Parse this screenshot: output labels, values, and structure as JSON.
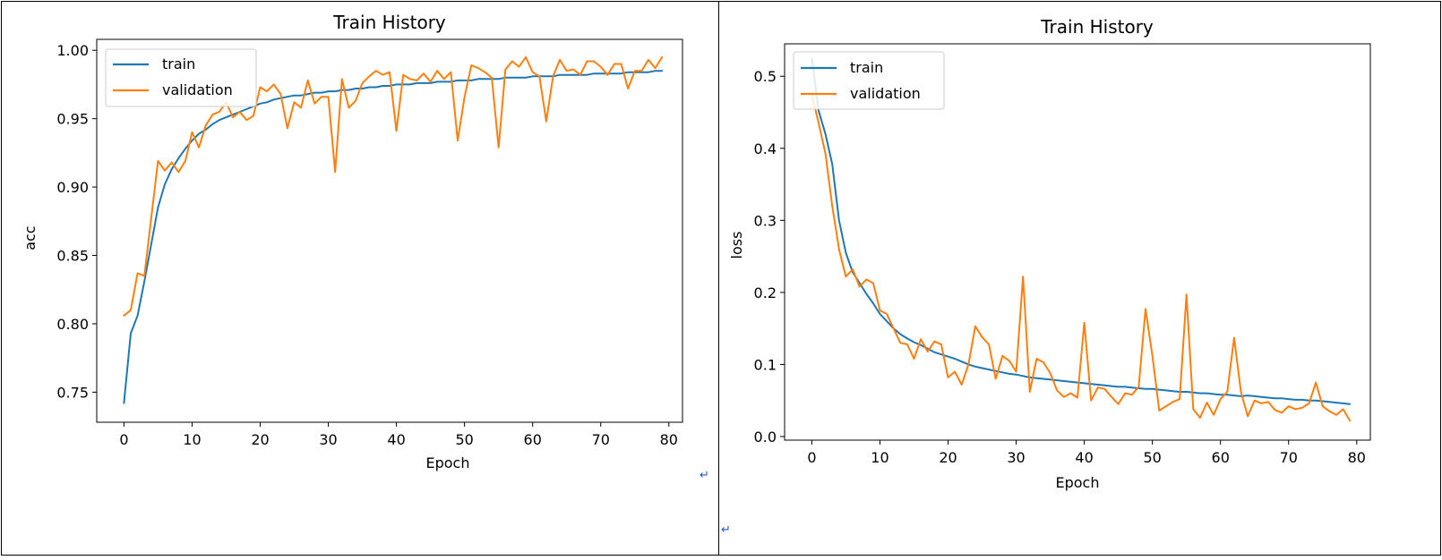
{
  "colors": {
    "train": "#1f77b4",
    "validation": "#ff7f0e",
    "border": "#000000",
    "axis": "#000000",
    "return_mark": "#2255cc"
  },
  "marks": {
    "return_symbol": "↵"
  },
  "chart_data": [
    {
      "type": "line",
      "title": "Train History",
      "xlabel": "Epoch",
      "ylabel": "acc",
      "xlim": [
        -4,
        82
      ],
      "ylim": [
        0.728,
        1.008
      ],
      "xticks": [
        0,
        10,
        20,
        30,
        40,
        50,
        60,
        70,
        80
      ],
      "yticks": [
        0.75,
        0.8,
        0.85,
        0.9,
        0.95,
        1.0
      ],
      "ytick_labels": [
        "0.75",
        "0.80",
        "0.85",
        "0.90",
        "0.95",
        "1.00"
      ],
      "legend": "top-left",
      "grid": false,
      "x": [
        0,
        1,
        2,
        3,
        4,
        5,
        6,
        7,
        8,
        9,
        10,
        11,
        12,
        13,
        14,
        15,
        16,
        17,
        18,
        19,
        20,
        21,
        22,
        23,
        24,
        25,
        26,
        27,
        28,
        29,
        30,
        31,
        32,
        33,
        34,
        35,
        36,
        37,
        38,
        39,
        40,
        41,
        42,
        43,
        44,
        45,
        46,
        47,
        48,
        49,
        50,
        51,
        52,
        53,
        54,
        55,
        56,
        57,
        58,
        59,
        60,
        61,
        62,
        63,
        64,
        65,
        66,
        67,
        68,
        69,
        70,
        71,
        72,
        73,
        74,
        75,
        76,
        77,
        78,
        79
      ],
      "series": [
        {
          "name": "train",
          "values": [
            0.742,
            0.793,
            0.806,
            0.831,
            0.858,
            0.885,
            0.902,
            0.913,
            0.921,
            0.928,
            0.934,
            0.939,
            0.942,
            0.946,
            0.949,
            0.951,
            0.953,
            0.955,
            0.957,
            0.959,
            0.961,
            0.962,
            0.964,
            0.965,
            0.966,
            0.967,
            0.967,
            0.968,
            0.969,
            0.969,
            0.97,
            0.97,
            0.971,
            0.971,
            0.972,
            0.972,
            0.973,
            0.973,
            0.974,
            0.974,
            0.975,
            0.975,
            0.975,
            0.976,
            0.976,
            0.976,
            0.977,
            0.977,
            0.977,
            0.978,
            0.978,
            0.978,
            0.979,
            0.979,
            0.979,
            0.979,
            0.98,
            0.98,
            0.98,
            0.98,
            0.981,
            0.981,
            0.981,
            0.981,
            0.982,
            0.982,
            0.982,
            0.982,
            0.982,
            0.983,
            0.983,
            0.983,
            0.983,
            0.983,
            0.984,
            0.984,
            0.984,
            0.984,
            0.985,
            0.985
          ]
        },
        {
          "name": "validation",
          "values": [
            0.806,
            0.81,
            0.837,
            0.835,
            0.877,
            0.919,
            0.912,
            0.918,
            0.911,
            0.919,
            0.94,
            0.929,
            0.945,
            0.953,
            0.955,
            0.962,
            0.951,
            0.955,
            0.949,
            0.952,
            0.973,
            0.97,
            0.975,
            0.968,
            0.943,
            0.962,
            0.958,
            0.978,
            0.961,
            0.966,
            0.966,
            0.911,
            0.979,
            0.958,
            0.963,
            0.976,
            0.981,
            0.985,
            0.982,
            0.984,
            0.941,
            0.982,
            0.979,
            0.978,
            0.983,
            0.977,
            0.985,
            0.979,
            0.984,
            0.934,
            0.966,
            0.989,
            0.987,
            0.984,
            0.98,
            0.929,
            0.986,
            0.992,
            0.988,
            0.995,
            0.984,
            0.981,
            0.948,
            0.981,
            0.993,
            0.985,
            0.986,
            0.982,
            0.992,
            0.992,
            0.988,
            0.982,
            0.99,
            0.99,
            0.972,
            0.985,
            0.985,
            0.993,
            0.987,
            0.995
          ]
        }
      ]
    },
    {
      "type": "line",
      "title": "Train History",
      "xlabel": "Epoch",
      "ylabel": "loss",
      "xlim": [
        -4,
        82
      ],
      "ylim": [
        -0.005,
        0.545
      ],
      "xticks": [
        0,
        10,
        20,
        30,
        40,
        50,
        60,
        70,
        80
      ],
      "yticks": [
        0.0,
        0.1,
        0.2,
        0.3,
        0.4,
        0.5
      ],
      "ytick_labels": [
        "0.0",
        "0.1",
        "0.2",
        "0.3",
        "0.4",
        "0.5"
      ],
      "legend": "top-left",
      "grid": false,
      "x": [
        0,
        1,
        2,
        3,
        4,
        5,
        6,
        7,
        8,
        9,
        10,
        11,
        12,
        13,
        14,
        15,
        16,
        17,
        18,
        19,
        20,
        21,
        22,
        23,
        24,
        25,
        26,
        27,
        28,
        29,
        30,
        31,
        32,
        33,
        34,
        35,
        36,
        37,
        38,
        39,
        40,
        41,
        42,
        43,
        44,
        45,
        46,
        47,
        48,
        49,
        50,
        51,
        52,
        53,
        54,
        55,
        56,
        57,
        58,
        59,
        60,
        61,
        62,
        63,
        64,
        65,
        66,
        67,
        68,
        69,
        70,
        71,
        72,
        73,
        74,
        75,
        76,
        77,
        78,
        79
      ],
      "series": [
        {
          "name": "train",
          "values": [
            0.525,
            0.452,
            0.42,
            0.378,
            0.3,
            0.255,
            0.228,
            0.213,
            0.198,
            0.185,
            0.17,
            0.16,
            0.15,
            0.142,
            0.136,
            0.131,
            0.127,
            0.122,
            0.117,
            0.114,
            0.111,
            0.108,
            0.104,
            0.1,
            0.097,
            0.095,
            0.093,
            0.091,
            0.089,
            0.087,
            0.086,
            0.084,
            0.082,
            0.081,
            0.08,
            0.079,
            0.078,
            0.077,
            0.076,
            0.075,
            0.074,
            0.073,
            0.072,
            0.071,
            0.07,
            0.069,
            0.069,
            0.068,
            0.067,
            0.066,
            0.066,
            0.065,
            0.064,
            0.063,
            0.062,
            0.062,
            0.061,
            0.06,
            0.06,
            0.059,
            0.058,
            0.058,
            0.057,
            0.056,
            0.057,
            0.056,
            0.055,
            0.054,
            0.053,
            0.053,
            0.052,
            0.051,
            0.051,
            0.05,
            0.05,
            0.049,
            0.048,
            0.047,
            0.046,
            0.045
          ]
        },
        {
          "name": "validation",
          "values": [
            0.475,
            0.435,
            0.393,
            0.32,
            0.26,
            0.222,
            0.232,
            0.208,
            0.218,
            0.213,
            0.175,
            0.17,
            0.15,
            0.13,
            0.128,
            0.108,
            0.135,
            0.118,
            0.132,
            0.128,
            0.082,
            0.09,
            0.072,
            0.1,
            0.153,
            0.138,
            0.128,
            0.08,
            0.112,
            0.105,
            0.09,
            0.222,
            0.062,
            0.108,
            0.103,
            0.088,
            0.064,
            0.055,
            0.06,
            0.054,
            0.158,
            0.05,
            0.068,
            0.066,
            0.055,
            0.045,
            0.06,
            0.058,
            0.069,
            0.177,
            0.112,
            0.036,
            0.042,
            0.048,
            0.052,
            0.197,
            0.038,
            0.026,
            0.047,
            0.03,
            0.052,
            0.062,
            0.137,
            0.062,
            0.028,
            0.05,
            0.046,
            0.048,
            0.037,
            0.033,
            0.042,
            0.038,
            0.04,
            0.046,
            0.075,
            0.042,
            0.035,
            0.03,
            0.038,
            0.022
          ]
        }
      ]
    }
  ]
}
